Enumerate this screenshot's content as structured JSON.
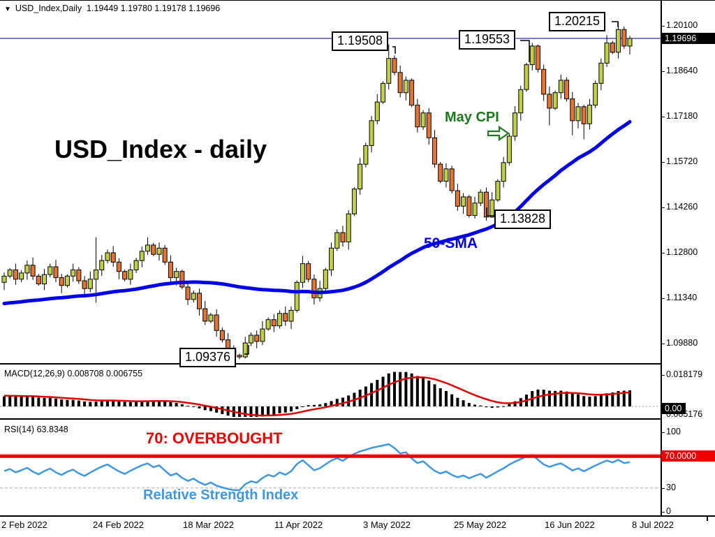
{
  "window": {
    "symbol": "USD_Index,Daily",
    "ohlc": {
      "open": "1.19449",
      "high": "1.19780",
      "low": "1.19178",
      "close": "1.19696"
    }
  },
  "main_panel": {
    "title": "USD_Index - daily",
    "sma_label": "50-SMA",
    "event_label": "May CPI",
    "price_labels": {
      "peak1": "1.19508",
      "peak2": "1.19553",
      "peak3": "1.20215",
      "low1": "1.09376",
      "low2": "1.13828"
    },
    "axis": {
      "labels": [
        1.201,
        1.1864,
        1.1718,
        1.1572,
        1.1426,
        1.128,
        1.1134,
        1.0988
      ],
      "current": "1.19696"
    }
  },
  "macd_panel": {
    "label": "MACD(12,26,9)",
    "main_value": "0.008708",
    "signal_value": "0.006755",
    "axis": {
      "top": "0.018179",
      "zero_box": "0.00",
      "bottom": "0.005176"
    }
  },
  "rsi_panel": {
    "label": "RSI(14)",
    "value": "63.8348",
    "overbought_label": "70: OVERBOUGHT",
    "caption": "Relative Strength Index",
    "axis": {
      "top": "100",
      "level": "70.0000",
      "low": "30",
      "zero": "0"
    }
  },
  "time_axis": {
    "labels": [
      "2 Feb 2022",
      "24 Feb 2022",
      "18 Mar 2022",
      "11 Apr 2022",
      "3 May 2022",
      "25 May 2022",
      "16 Jun 2022",
      "8 Jul 2022"
    ]
  },
  "colors": {
    "up": "#c0cf45",
    "down": "#e4742f",
    "outline": "#000000",
    "sma": "#0000e8",
    "signal": "#e00000",
    "rsi": "#3d97e3",
    "level": "#ee0000",
    "price_line": "#000080",
    "event": "#1a7a1a",
    "box_bg": "#000000",
    "box_text": "#ffffff"
  },
  "chart_data": {
    "type": "candlestick",
    "symbol": "USD_Index",
    "timeframe": "Daily",
    "title": "USD_Index - daily",
    "x_range": [
      "2 Feb 2022",
      "8 Jul 2022"
    ],
    "y_axis_ticks": [
      1.201,
      1.1864,
      1.1718,
      1.1572,
      1.1426,
      1.128,
      1.1134,
      1.0988
    ],
    "marked_extremes": {
      "high_1": 1.19508,
      "high_2": 1.19553,
      "high_3": 1.20215,
      "low_1": 1.09376,
      "low_2": 1.13828,
      "last_close": 1.19696
    },
    "candles": [
      [
        1.1185,
        1.1217,
        1.116,
        1.1205
      ],
      [
        1.1205,
        1.1231,
        1.1198,
        1.1225
      ],
      [
        1.1225,
        1.1245,
        1.1177,
        1.1195
      ],
      [
        1.1195,
        1.1224,
        1.1185,
        1.1215
      ],
      [
        1.1215,
        1.1255,
        1.1193,
        1.124
      ],
      [
        1.124,
        1.1265,
        1.1193,
        1.1205
      ],
      [
        1.1205,
        1.1212,
        1.1174,
        1.118
      ],
      [
        1.118,
        1.1228,
        1.116,
        1.121
      ],
      [
        1.121,
        1.1245,
        1.1201,
        1.1235
      ],
      [
        1.1235,
        1.1257,
        1.1185,
        1.12
      ],
      [
        1.12,
        1.1212,
        1.115,
        1.1175
      ],
      [
        1.1175,
        1.1211,
        1.1168,
        1.1205
      ],
      [
        1.1205,
        1.1245,
        1.1187,
        1.1225
      ],
      [
        1.1225,
        1.1234,
        1.118,
        1.119
      ],
      [
        1.119,
        1.1205,
        1.1143,
        1.1165
      ],
      [
        1.1165,
        1.122,
        1.1153,
        1.1195
      ],
      [
        1.1195,
        1.133,
        1.112,
        1.1225
      ],
      [
        1.1225,
        1.1273,
        1.1205,
        1.1255
      ],
      [
        1.1255,
        1.129,
        1.1246,
        1.128
      ],
      [
        1.128,
        1.1302,
        1.1235,
        1.125
      ],
      [
        1.125,
        1.1262,
        1.1195,
        1.122
      ],
      [
        1.122,
        1.1226,
        1.1188,
        1.1195
      ],
      [
        1.1195,
        1.1245,
        1.1177,
        1.1225
      ],
      [
        1.1225,
        1.1264,
        1.1215,
        1.1255
      ],
      [
        1.1255,
        1.13,
        1.1233,
        1.1285
      ],
      [
        1.1285,
        1.133,
        1.1273,
        1.1305
      ],
      [
        1.1305,
        1.1312,
        1.1269,
        1.1275
      ],
      [
        1.1275,
        1.1313,
        1.1255,
        1.1295
      ],
      [
        1.1295,
        1.1305,
        1.1241,
        1.125
      ],
      [
        1.125,
        1.1272,
        1.1185,
        1.12
      ],
      [
        1.12,
        1.1232,
        1.1175,
        1.122
      ],
      [
        1.122,
        1.1226,
        1.1163,
        1.117
      ],
      [
        1.117,
        1.119,
        1.1112,
        1.113
      ],
      [
        1.113,
        1.1159,
        1.112,
        1.115
      ],
      [
        1.115,
        1.1165,
        1.1078,
        1.11
      ],
      [
        1.11,
        1.1125,
        1.1048,
        1.106
      ],
      [
        1.106,
        1.1087,
        1.1054,
        1.108
      ],
      [
        1.108,
        1.1098,
        1.101,
        1.103
      ],
      [
        1.103,
        1.104,
        1.0991,
        1.1
      ],
      [
        1.1,
        1.1022,
        1.0955,
        1.097
      ],
      [
        1.097,
        1.0982,
        1.0942,
        1.095
      ],
      [
        1.095,
        1.0956,
        1.09376,
        1.0945
      ],
      [
        1.0945,
        1.101,
        1.094,
        1.099
      ],
      [
        1.099,
        1.1024,
        1.098,
        1.1015
      ],
      [
        1.1015,
        1.103,
        1.0973,
        1.0995
      ],
      [
        1.0995,
        1.106,
        1.0983,
        1.1035
      ],
      [
        1.1035,
        1.1072,
        1.1029,
        1.1065
      ],
      [
        1.1065,
        1.1083,
        1.1025,
        1.1045
      ],
      [
        1.1045,
        1.1095,
        1.1036,
        1.1085
      ],
      [
        1.1085,
        1.1107,
        1.1045,
        1.106
      ],
      [
        1.106,
        1.1107,
        1.1035,
        1.1095
      ],
      [
        1.1095,
        1.1191,
        1.1088,
        1.1185
      ],
      [
        1.1185,
        1.127,
        1.1167,
        1.1245
      ],
      [
        1.1245,
        1.1254,
        1.1185,
        1.1195
      ],
      [
        1.1195,
        1.121,
        1.1113,
        1.1135
      ],
      [
        1.1135,
        1.119,
        1.1123,
        1.1165
      ],
      [
        1.1165,
        1.1232,
        1.1159,
        1.1225
      ],
      [
        1.1225,
        1.1313,
        1.1205,
        1.1295
      ],
      [
        1.1295,
        1.1355,
        1.1286,
        1.1345
      ],
      [
        1.1345,
        1.1367,
        1.13,
        1.1315
      ],
      [
        1.1315,
        1.1417,
        1.129,
        1.1405
      ],
      [
        1.1405,
        1.1491,
        1.1398,
        1.1485
      ],
      [
        1.1485,
        1.1585,
        1.1467,
        1.1565
      ],
      [
        1.1565,
        1.1634,
        1.1555,
        1.1625
      ],
      [
        1.1625,
        1.172,
        1.1603,
        1.1705
      ],
      [
        1.1705,
        1.179,
        1.1693,
        1.1765
      ],
      [
        1.1765,
        1.1832,
        1.1759,
        1.1825
      ],
      [
        1.1825,
        1.19508,
        1.1805,
        1.1905
      ],
      [
        1.1905,
        1.1915,
        1.1851,
        1.186
      ],
      [
        1.186,
        1.1882,
        1.178,
        1.1795
      ],
      [
        1.1795,
        1.1847,
        1.177,
        1.1835
      ],
      [
        1.1835,
        1.1841,
        1.1748,
        1.1755
      ],
      [
        1.1755,
        1.1775,
        1.1667,
        1.1685
      ],
      [
        1.1685,
        1.1739,
        1.1675,
        1.173
      ],
      [
        1.173,
        1.1745,
        1.1628,
        1.165
      ],
      [
        1.165,
        1.1675,
        1.1553,
        1.1565
      ],
      [
        1.1565,
        1.1572,
        1.1504,
        1.151
      ],
      [
        1.151,
        1.1568,
        1.149,
        1.155
      ],
      [
        1.155,
        1.156,
        1.1471,
        1.148
      ],
      [
        1.148,
        1.1502,
        1.1415,
        1.143
      ],
      [
        1.143,
        1.1472,
        1.1405,
        1.146
      ],
      [
        1.146,
        1.1466,
        1.1393,
        1.14
      ],
      [
        1.14,
        1.146,
        1.139,
        1.144
      ],
      [
        1.144,
        1.1484,
        1.143,
        1.1475
      ],
      [
        1.1475,
        1.149,
        1.13828,
        1.1395
      ],
      [
        1.1395,
        1.1475,
        1.1392,
        1.145
      ],
      [
        1.145,
        1.1517,
        1.1444,
        1.151
      ],
      [
        1.151,
        1.1588,
        1.149,
        1.157
      ],
      [
        1.157,
        1.1665,
        1.1561,
        1.1655
      ],
      [
        1.1655,
        1.1752,
        1.164,
        1.173
      ],
      [
        1.173,
        1.1817,
        1.1705,
        1.1805
      ],
      [
        1.1805,
        1.1891,
        1.1798,
        1.1885
      ],
      [
        1.1885,
        1.19553,
        1.1867,
        1.1945
      ],
      [
        1.1945,
        1.195,
        1.186,
        1.187
      ],
      [
        1.187,
        1.1885,
        1.1768,
        1.179
      ],
      [
        1.179,
        1.1815,
        1.169,
        1.1745
      ],
      [
        1.1745,
        1.1802,
        1.1739,
        1.1795
      ],
      [
        1.1795,
        1.1853,
        1.1775,
        1.1835
      ],
      [
        1.1835,
        1.1845,
        1.1766,
        1.1775
      ],
      [
        1.1775,
        1.1797,
        1.1658,
        1.1705
      ],
      [
        1.1705,
        1.1762,
        1.168,
        1.175
      ],
      [
        1.175,
        1.1756,
        1.1645,
        1.1695
      ],
      [
        1.1695,
        1.1775,
        1.1677,
        1.1755
      ],
      [
        1.1755,
        1.1834,
        1.1745,
        1.1825
      ],
      [
        1.1825,
        1.1905,
        1.1803,
        1.189
      ],
      [
        1.189,
        1.198,
        1.1878,
        1.1955
      ],
      [
        1.1955,
        1.1962,
        1.1919,
        1.1925
      ],
      [
        1.1925,
        1.20215,
        1.1905,
        1.1998
      ],
      [
        1.1998,
        1.2008,
        1.1936,
        1.1945
      ],
      [
        1.19449,
        1.1978,
        1.19178,
        1.19696
      ]
    ],
    "overlays": [
      {
        "name": "50-SMA",
        "type": "sma",
        "period": 50,
        "prehistory_value": 1.1115
      }
    ],
    "indicators": [
      {
        "name": "MACD",
        "params": [
          12,
          26,
          9
        ],
        "current": [
          0.008708,
          0.006755
        ],
        "axis_top": 0.018179
      },
      {
        "name": "RSI",
        "period": 14,
        "current": 63.8348,
        "levels": [
          70,
          30
        ]
      }
    ]
  }
}
